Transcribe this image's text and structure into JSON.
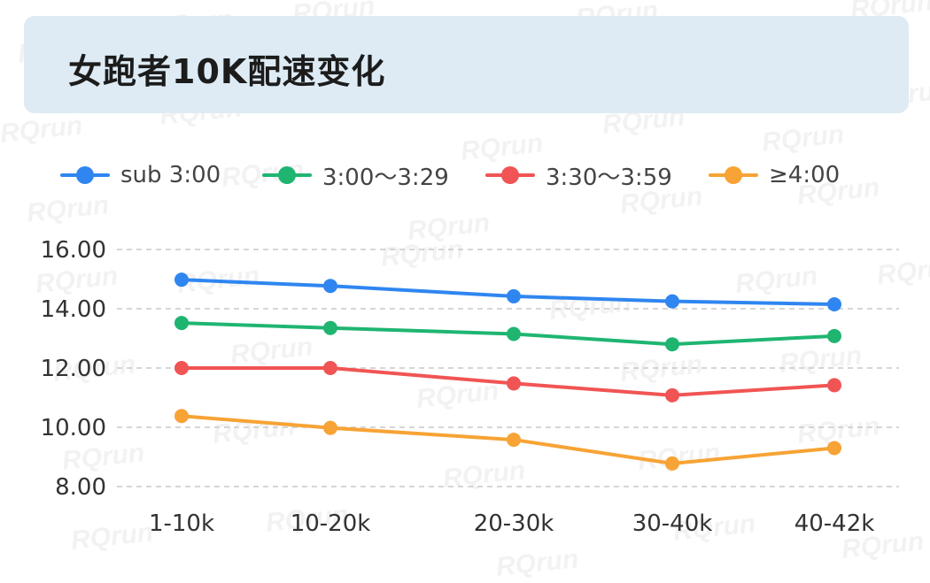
{
  "title": "女跑者10K配速变化",
  "watermark_text": "RQrun",
  "chart_data": {
    "type": "line",
    "title": "女跑者10K配速变化",
    "xlabel": "",
    "ylabel": "",
    "categories": [
      "1-10k",
      "10-20k",
      "20-30k",
      "30-40k",
      "40-42k"
    ],
    "ylim": [
      8.0,
      16.0
    ],
    "yticks": [
      "8.00",
      "10.00",
      "12.00",
      "14.00",
      "16.00"
    ],
    "grid": "horizontal dashed",
    "legend_position": "top",
    "series": [
      {
        "name": "sub 3:00",
        "color": "#2f86f0",
        "values": [
          14.98,
          14.77,
          14.42,
          14.25,
          14.15
        ]
      },
      {
        "name": "3:00～3:29",
        "color": "#1fb571",
        "values": [
          13.52,
          13.35,
          13.15,
          12.8,
          13.08
        ]
      },
      {
        "name": "3:30～3:59",
        "color": "#f15454",
        "values": [
          12.0,
          12.0,
          11.48,
          11.08,
          11.42
        ]
      },
      {
        "name": "≥4:00",
        "color": "#f7a335",
        "values": [
          10.38,
          9.98,
          9.58,
          8.78,
          9.3
        ]
      }
    ]
  }
}
